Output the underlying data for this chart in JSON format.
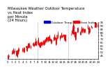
{
  "title": "Milwaukee Weather Outdoor Temperature\nvs Heat Index\nper Minute\n(24 Hours)",
  "legend_labels": [
    "Outdoor Temp",
    "Heat Index"
  ],
  "legend_colors": [
    "#0000cc",
    "#ff0000"
  ],
  "bg_color": "#ffffff",
  "plot_bg_color": "#ffffff",
  "y_min": 40,
  "y_max": 95,
  "n_points": 1440,
  "vline_x": [
    480,
    960
  ],
  "vline_color": "#999999",
  "vline_style": ":",
  "seg_color": "#ff0000",
  "title_fontsize": 3.8,
  "tick_fontsize": 2.8,
  "legend_fontsize": 3.2,
  "seed": 7
}
